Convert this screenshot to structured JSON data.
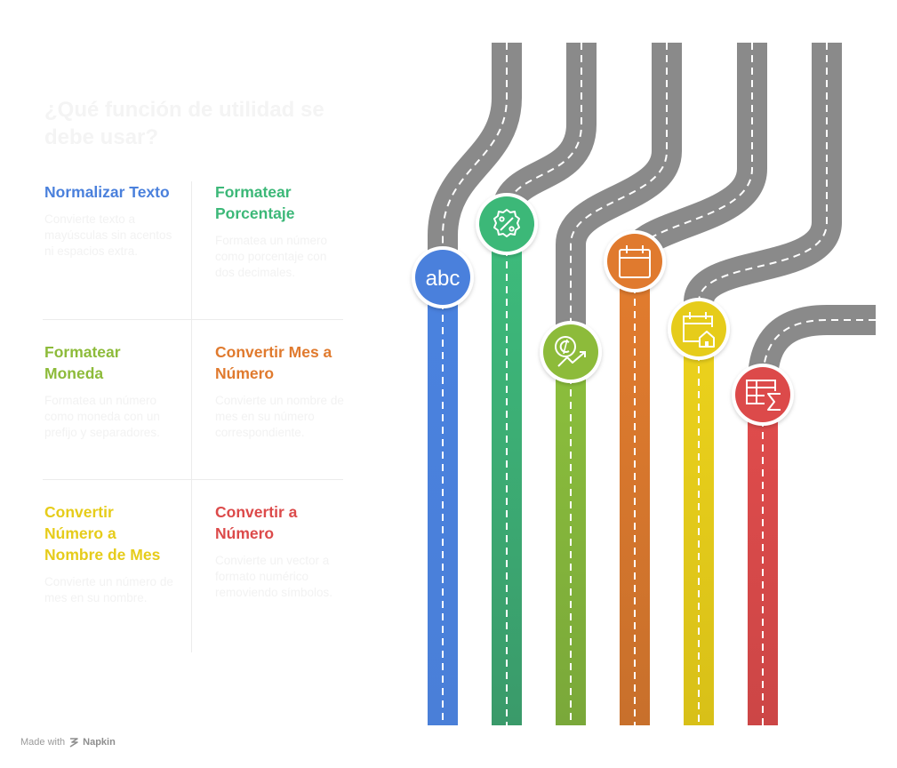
{
  "title": "¿Qué función de utilidad se debe usar?",
  "items": [
    {
      "title": "Normalizar Texto",
      "description": "Convierte texto a mayúsculas sin acentos ni espacios extra.",
      "color": "#4a80dc",
      "icon": "abc-text-icon"
    },
    {
      "title": "Formatear Porcentaje",
      "description": "Formatea un número como porcentaje con dos decimales.",
      "color": "#3cb878",
      "icon": "percent-badge-icon"
    },
    {
      "title": "Formatear Moneda",
      "description": "Formatea un número como moneda con un prefijo y separadores.",
      "color": "#8dbb3a",
      "icon": "currency-growth-icon"
    },
    {
      "title": "Convertir Mes a Número",
      "description": "Convierte un nombre de mes en su número correspondiente.",
      "color": "#e07a2e",
      "icon": "calendar-icon"
    },
    {
      "title": "Convertir Número a Nombre de Mes",
      "description": "Convierte un número de mes en su nombre.",
      "color": "#e6cc1a",
      "icon": "calendar-home-icon"
    },
    {
      "title": "Convertir a Número",
      "description": "Convierte un vector a formato numérico removiendo símbolos.",
      "color": "#dc4a4a",
      "icon": "table-sum-icon"
    }
  ],
  "icon_labels": {
    "abc": "abc"
  },
  "footer": {
    "made_with": "Made with",
    "brand": "Napkin"
  }
}
